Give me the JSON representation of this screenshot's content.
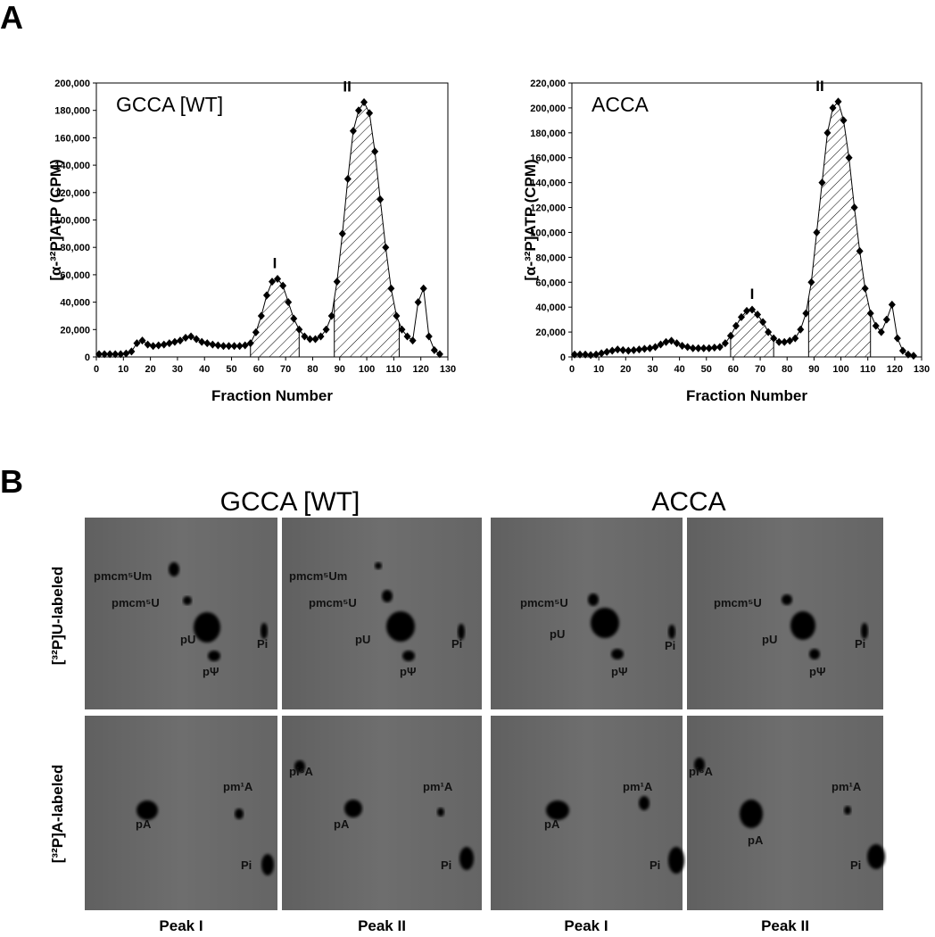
{
  "figure": {
    "panel_a": "A",
    "panel_b": "B"
  },
  "chart_data": [
    {
      "type": "line",
      "title": "GCCA [WT]",
      "xlabel": "Fraction Number",
      "ylabel": "[α-³²P]ATP (CPM)",
      "color": "#000000",
      "x": [
        1,
        3,
        5,
        7,
        9,
        11,
        13,
        15,
        17,
        19,
        21,
        23,
        25,
        27,
        29,
        31,
        33,
        35,
        37,
        39,
        41,
        43,
        45,
        47,
        49,
        51,
        53,
        55,
        57,
        59,
        61,
        63,
        65,
        67,
        69,
        71,
        73,
        75,
        77,
        79,
        81,
        83,
        85,
        87,
        89,
        91,
        93,
        95,
        97,
        99,
        101,
        103,
        105,
        107,
        109,
        111,
        113,
        115,
        117,
        119,
        121,
        123,
        125,
        127
      ],
      "values": [
        2000,
        2000,
        2000,
        2000,
        2000,
        2500,
        4000,
        10000,
        12000,
        9000,
        8000,
        8500,
        9000,
        10000,
        11000,
        12000,
        14000,
        15000,
        13000,
        11000,
        10000,
        9000,
        8500,
        8000,
        8000,
        8000,
        8000,
        8500,
        10000,
        18000,
        30000,
        45000,
        55000,
        57000,
        52000,
        40000,
        28000,
        20000,
        15000,
        13000,
        13000,
        15000,
        20000,
        30000,
        55000,
        90000,
        130000,
        165000,
        180000,
        186000,
        178000,
        150000,
        115000,
        80000,
        50000,
        30000,
        20000,
        15000,
        12000,
        40000,
        50000,
        15000,
        5000,
        2000
      ],
      "xlim": [
        0,
        130
      ],
      "xticks": [
        0,
        10,
        20,
        30,
        40,
        50,
        60,
        70,
        80,
        90,
        100,
        110,
        120,
        130
      ],
      "ylim": [
        0,
        200000
      ],
      "yticks": [
        0,
        {
          "value": 20000,
          "label": "20,000"
        },
        {
          "value": 40000,
          "label": "40,000"
        },
        {
          "value": 60000,
          "label": "60,000"
        },
        {
          "value": 80000,
          "label": "80,000"
        },
        {
          "value": 100000,
          "label": "100,000"
        },
        {
          "value": 120000,
          "label": "120,000"
        },
        {
          "value": 140000,
          "label": "140,000"
        },
        {
          "value": 160000,
          "label": "160,000"
        },
        {
          "value": 180000,
          "label": "180,000"
        },
        {
          "value": 200000,
          "label": "200,000"
        }
      ],
      "shaded_ranges": [
        [
          57,
          75
        ],
        [
          88,
          112
        ]
      ],
      "peak_labels": [
        "I",
        "II"
      ]
    },
    {
      "type": "line",
      "title": "ACCA",
      "xlabel": "Fraction Number",
      "ylabel": "[α-³²P]ATP (CPM)",
      "color": "#000000",
      "x": [
        1,
        3,
        5,
        7,
        9,
        11,
        13,
        15,
        17,
        19,
        21,
        23,
        25,
        27,
        29,
        31,
        33,
        35,
        37,
        39,
        41,
        43,
        45,
        47,
        49,
        51,
        53,
        55,
        57,
        59,
        61,
        63,
        65,
        67,
        69,
        71,
        73,
        75,
        77,
        79,
        81,
        83,
        85,
        87,
        89,
        91,
        93,
        95,
        97,
        99,
        101,
        103,
        105,
        107,
        109,
        111,
        113,
        115,
        117,
        119,
        121,
        123,
        125,
        127
      ],
      "values": [
        2000,
        2000,
        2000,
        1500,
        2000,
        3000,
        4000,
        5000,
        6000,
        5500,
        5000,
        5500,
        6000,
        6500,
        7000,
        8000,
        10000,
        12000,
        13000,
        11000,
        9000,
        8000,
        7000,
        7000,
        7000,
        7000,
        7500,
        8000,
        11000,
        17000,
        25000,
        32000,
        37000,
        38000,
        34000,
        28000,
        20000,
        15000,
        12000,
        12000,
        13000,
        15000,
        22000,
        35000,
        60000,
        100000,
        140000,
        180000,
        200000,
        205000,
        190000,
        160000,
        120000,
        85000,
        55000,
        35000,
        25000,
        20000,
        30000,
        42000,
        15000,
        5000,
        2000,
        1000
      ],
      "xlim": [
        0,
        130
      ],
      "xticks": [
        0,
        10,
        20,
        30,
        40,
        50,
        60,
        70,
        80,
        90,
        100,
        110,
        120,
        130
      ],
      "ylim": [
        0,
        220000
      ],
      "yticks": [
        0,
        {
          "value": 20000,
          "label": "20,000"
        },
        {
          "value": 40000,
          "label": "40,000"
        },
        {
          "value": 60000,
          "label": "60,000"
        },
        {
          "value": 80000,
          "label": "80,000"
        },
        {
          "value": 100000,
          "label": "100,000"
        },
        {
          "value": 120000,
          "label": "120,000"
        },
        {
          "value": 140000,
          "label": "140,000"
        },
        {
          "value": 160000,
          "label": "160,000"
        },
        {
          "value": 180000,
          "label": "180,000"
        },
        {
          "value": 200000,
          "label": "200,000"
        },
        {
          "value": 220000,
          "label": "220,000"
        }
      ],
      "shaded_ranges": [
        [
          59,
          75
        ],
        [
          88,
          111
        ]
      ],
      "peak_labels": [
        "I",
        "II"
      ]
    }
  ],
  "panel_b": {
    "groups": [
      "GCCA [WT]",
      "ACCA"
    ],
    "rows": [
      "[³²P]U-labeled",
      "[³²P]A-labeled"
    ],
    "columns": [
      "Peak I",
      "Peak II",
      "Peak I",
      "Peak II"
    ],
    "gels": [
      {
        "labels": [
          "pmcm⁵Um",
          "pmcm⁵U",
          "pU",
          "pΨ",
          "Pi"
        ]
      },
      {
        "labels": [
          "pmcm⁵Um",
          "pmcm⁵U",
          "pU",
          "pΨ",
          "Pi"
        ]
      },
      {
        "labels": [
          "pmcm⁵U",
          "pU",
          "pΨ",
          "Pi"
        ]
      },
      {
        "labels": [
          "pmcm⁵U",
          "pU",
          "pΨ",
          "Pi"
        ]
      },
      {
        "labels": [
          "pA",
          "pm¹A",
          "Pi"
        ]
      },
      {
        "labels": [
          "pi⁶A",
          "pA",
          "pm¹A",
          "Pi"
        ]
      },
      {
        "labels": [
          "pA",
          "pm¹A",
          "Pi"
        ]
      },
      {
        "labels": [
          "pi⁶A",
          "pm¹A",
          "pA",
          "Pi"
        ]
      }
    ]
  }
}
